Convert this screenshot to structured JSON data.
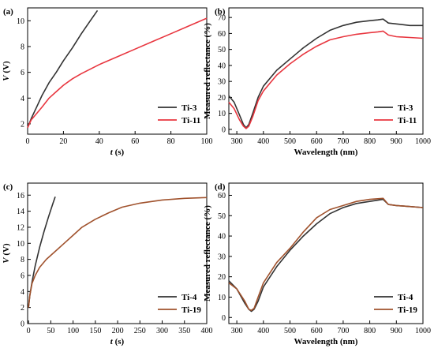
{
  "chart_data": [
    {
      "type": "line",
      "panel_label": "(a)",
      "xlabel": "t (s)",
      "ylabel": "V (V)",
      "xlim": [
        0,
        100
      ],
      "ylim": [
        1.2,
        11
      ],
      "xticks": [
        0,
        20,
        40,
        60,
        80,
        100
      ],
      "yticks": [
        2,
        4,
        6,
        8,
        10
      ],
      "legend_placement": "bottom-right",
      "series": [
        {
          "name": "Ti-3",
          "color": "#333333",
          "x": [
            0,
            2,
            5,
            8,
            12,
            16,
            20,
            25,
            30,
            35,
            39
          ],
          "y": [
            1.7,
            2.4,
            3.3,
            4.2,
            5.2,
            6.0,
            6.9,
            7.9,
            9.0,
            10.0,
            10.8
          ]
        },
        {
          "name": "Ti-11",
          "color": "#e8363f",
          "x": [
            0,
            2,
            5,
            8,
            12,
            16,
            20,
            25,
            30,
            40,
            50,
            60,
            70,
            80,
            90,
            100
          ],
          "y": [
            1.7,
            2.3,
            2.8,
            3.3,
            4.0,
            4.5,
            5.0,
            5.5,
            5.9,
            6.6,
            7.2,
            7.8,
            8.4,
            9.0,
            9.6,
            10.2
          ]
        }
      ]
    },
    {
      "type": "line",
      "panel_label": "(b)",
      "xlabel": "Wavelength (nm)",
      "ylabel": "Measured reflectance (%)",
      "xlim": [
        270,
        1000
      ],
      "ylim": [
        -3,
        76
      ],
      "xticks": [
        300,
        400,
        500,
        600,
        700,
        800,
        900,
        1000
      ],
      "yticks": [
        0,
        10,
        20,
        30,
        40,
        50,
        60,
        70
      ],
      "legend_placement": "bottom-right",
      "series": [
        {
          "name": "Ti-3",
          "color": "#333333",
          "x": [
            270,
            290,
            310,
            325,
            335,
            345,
            360,
            380,
            400,
            450,
            500,
            550,
            600,
            650,
            700,
            750,
            800,
            830,
            850,
            870,
            900,
            950,
            1000
          ],
          "y": [
            21,
            17,
            9,
            3,
            1,
            3,
            10,
            20,
            27,
            37,
            44,
            51,
            57,
            62,
            65,
            67,
            68,
            68.5,
            69,
            66.5,
            66,
            65,
            65
          ]
        },
        {
          "name": "Ti-11",
          "color": "#e8363f",
          "x": [
            270,
            290,
            310,
            325,
            335,
            345,
            360,
            380,
            400,
            450,
            500,
            550,
            600,
            650,
            700,
            750,
            800,
            830,
            850,
            870,
            900,
            950,
            1000
          ],
          "y": [
            17,
            13,
            6,
            2,
            0.5,
            2,
            8,
            18,
            24,
            34,
            41,
            47,
            52,
            56,
            58,
            59.5,
            60.5,
            61,
            61.5,
            59,
            58,
            57.5,
            57
          ]
        }
      ]
    },
    {
      "type": "line",
      "panel_label": "(c)",
      "xlabel": "t (s)",
      "ylabel": "V (V)",
      "xlim": [
        -2,
        400
      ],
      "ylim": [
        0,
        17.5
      ],
      "xticks": [
        0,
        50,
        100,
        150,
        200,
        250,
        300,
        350,
        400
      ],
      "yticks": [
        0,
        2,
        4,
        6,
        8,
        10,
        12,
        14,
        16
      ],
      "legend_placement": "bottom-right",
      "series": [
        {
          "name": "Ti-4",
          "color": "#333333",
          "x": [
            0,
            3,
            8,
            15,
            25,
            35,
            45,
            55,
            60
          ],
          "y": [
            2.0,
            3.5,
            5.2,
            7.2,
            9.5,
            11.5,
            13.3,
            15.0,
            15.8
          ]
        },
        {
          "name": "Ti-19",
          "color": "#a0522d",
          "x": [
            0,
            3,
            8,
            15,
            25,
            40,
            60,
            80,
            100,
            120,
            150,
            180,
            210,
            250,
            300,
            350,
            400
          ],
          "y": [
            2.0,
            3.5,
            5.0,
            6.0,
            7.0,
            8.0,
            9.0,
            10.0,
            11.0,
            12.0,
            13.0,
            13.8,
            14.5,
            15.0,
            15.4,
            15.6,
            15.7
          ]
        }
      ]
    },
    {
      "type": "line",
      "panel_label": "(d)",
      "xlabel": "Wavelength (nm)",
      "ylabel": "Measured reflectance (%)",
      "xlim": [
        270,
        1000
      ],
      "ylim": [
        -3,
        66
      ],
      "xticks": [
        300,
        400,
        500,
        600,
        700,
        800,
        900,
        1000
      ],
      "yticks": [
        0,
        10,
        20,
        30,
        40,
        50,
        60
      ],
      "legend_placement": "bottom-right",
      "series": [
        {
          "name": "Ti-4",
          "color": "#333333",
          "x": [
            270,
            300,
            330,
            345,
            355,
            365,
            380,
            400,
            450,
            500,
            550,
            600,
            650,
            700,
            750,
            800,
            850,
            870,
            900,
            950,
            1000
          ],
          "y": [
            18,
            14,
            7,
            4,
            3,
            4,
            8,
            15,
            25,
            33,
            40,
            46,
            51,
            54,
            56,
            57,
            58,
            55.5,
            55,
            54.5,
            54
          ]
        },
        {
          "name": "Ti-19",
          "color": "#a0522d",
          "x": [
            270,
            300,
            330,
            345,
            355,
            365,
            380,
            400,
            450,
            500,
            550,
            600,
            650,
            700,
            750,
            800,
            850,
            870,
            900,
            950,
            1000
          ],
          "y": [
            17,
            14,
            8,
            4,
            3.5,
            4.5,
            10,
            17,
            27,
            34,
            42,
            49,
            53,
            55,
            57,
            58,
            58.5,
            55.5,
            55,
            54.5,
            54
          ]
        }
      ]
    }
  ]
}
